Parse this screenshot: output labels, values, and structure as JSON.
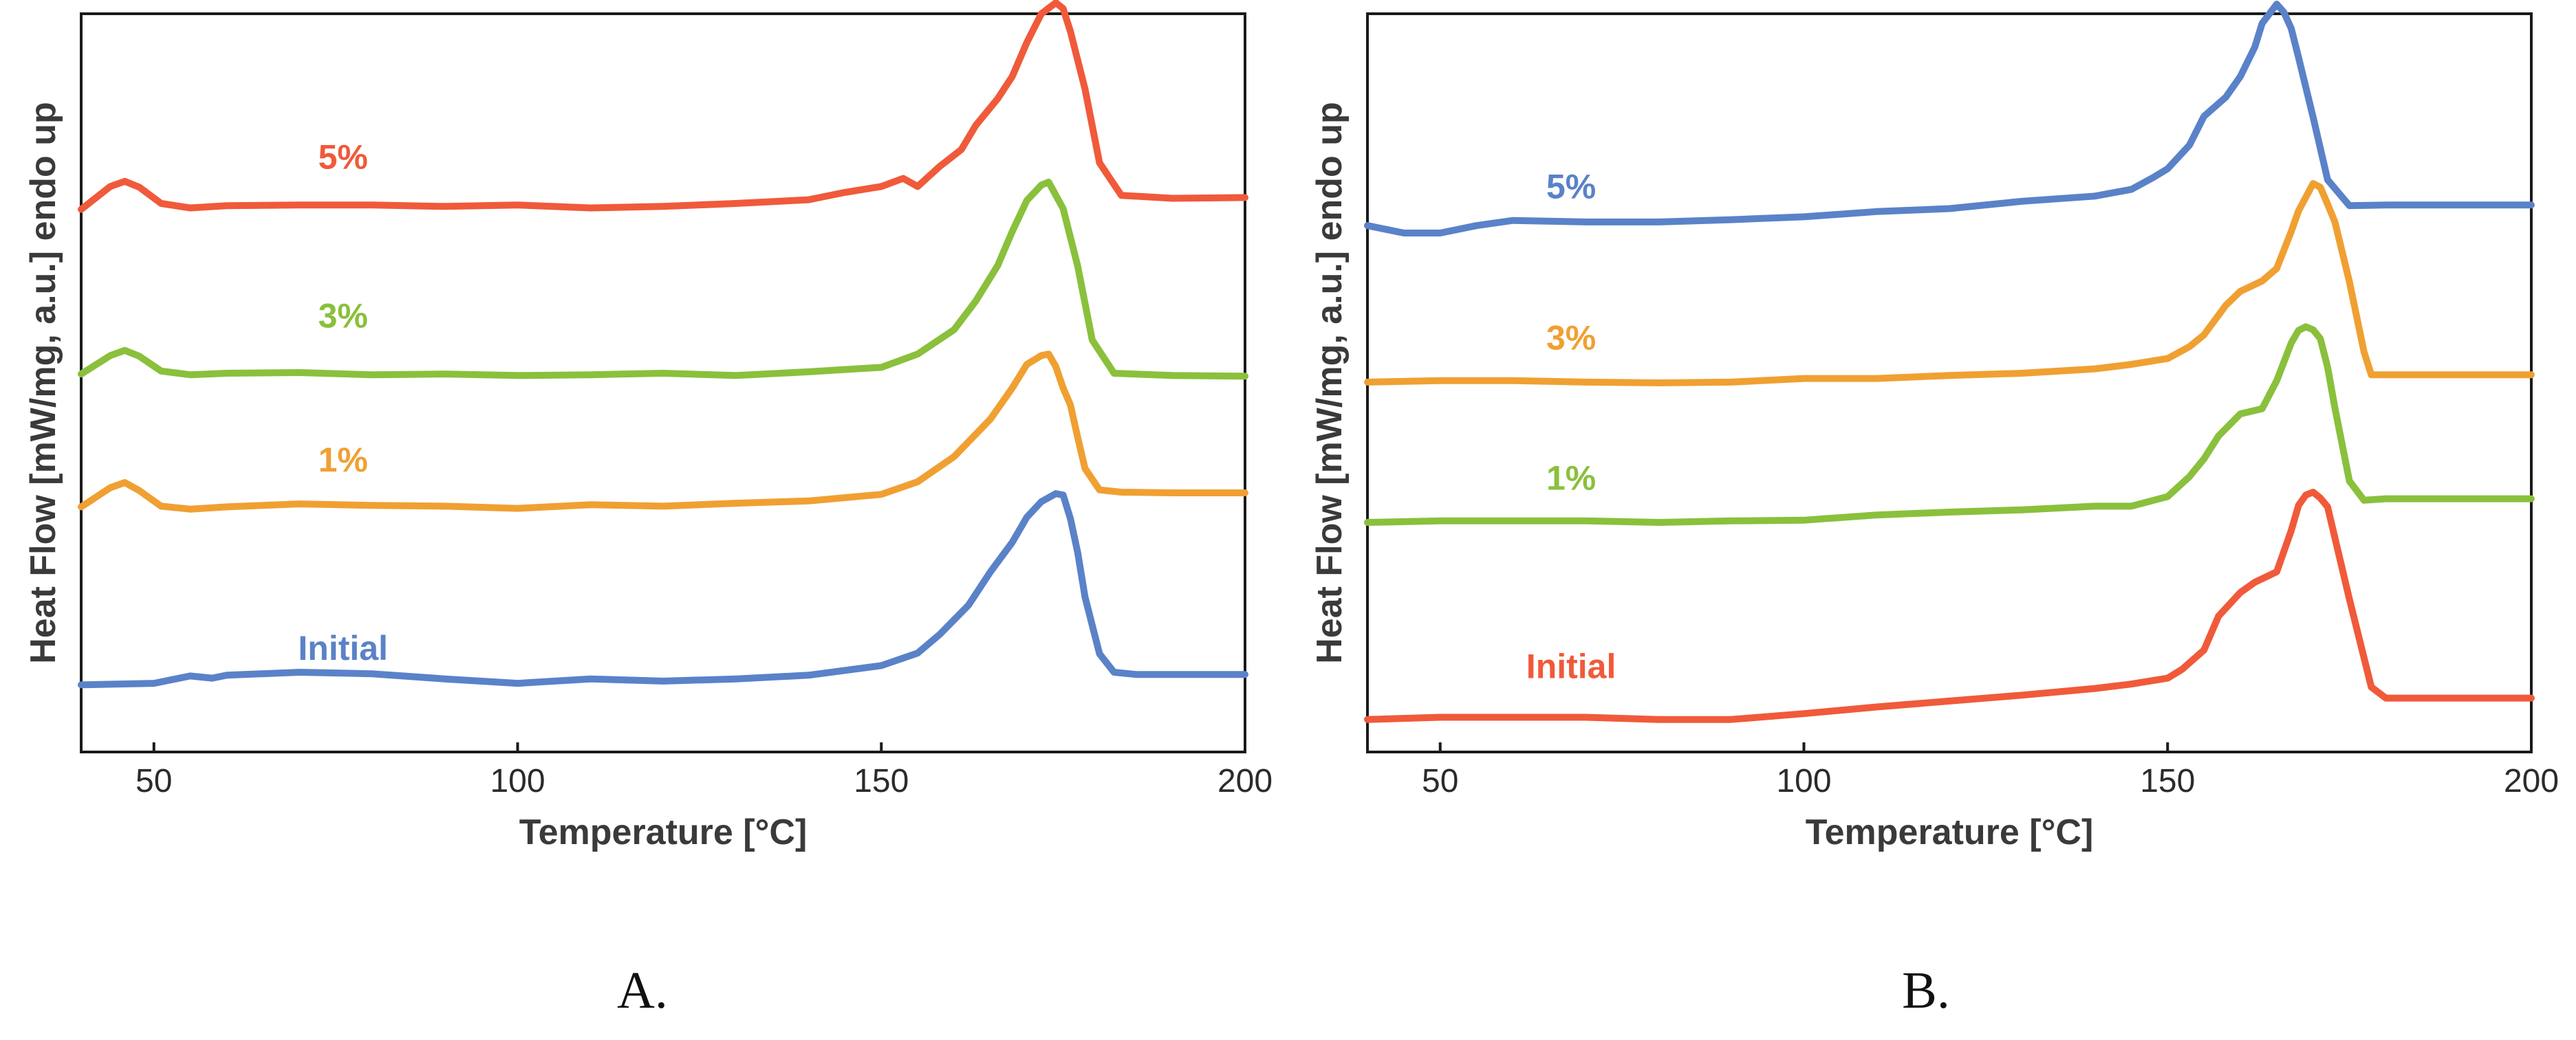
{
  "colors": {
    "red": "#f05a3a",
    "green": "#8ac03c",
    "orange": "#f0a032",
    "blue": "#5a82c8"
  },
  "chart_data": [
    {
      "type": "line",
      "caption": "A.",
      "xlabel": "Temperature [°C]",
      "ylabel": "Heat Flow [mW/mg, a.u.]  endo up",
      "xlim": [
        40,
        200
      ],
      "ylim": [
        0,
        100
      ],
      "xticks": [
        50,
        100,
        150,
        200
      ],
      "yticks_shown": false,
      "grid": false,
      "series": [
        {
          "name": "5%",
          "color": "#f05a3a",
          "label_at": [
            76,
            79
          ],
          "x": [
            40,
            44,
            46,
            48,
            51,
            55,
            60,
            70,
            80,
            90,
            100,
            110,
            120,
            130,
            140,
            145,
            150,
            153,
            155,
            158,
            161,
            163,
            166,
            168,
            170,
            172,
            174,
            175,
            176,
            178,
            180,
            183,
            190,
            200
          ],
          "y": [
            73.5,
            76.6,
            77.3,
            76.5,
            74.3,
            73.7,
            74.0,
            74.1,
            74.1,
            73.9,
            74.1,
            73.7,
            73.9,
            74.3,
            74.8,
            75.8,
            76.6,
            77.7,
            76.6,
            79.3,
            81.6,
            84.9,
            88.5,
            91.5,
            96.1,
            100.0,
            101.5,
            100.7,
            97.6,
            89.8,
            79.8,
            75.4,
            75.0,
            75.1
          ]
        },
        {
          "name": "3%",
          "color": "#8ac03c",
          "label_at": [
            76,
            57.5
          ],
          "x": [
            40,
            44,
            46,
            48,
            51,
            55,
            60,
            70,
            80,
            90,
            100,
            110,
            120,
            130,
            140,
            150,
            155,
            160,
            163,
            166,
            168,
            170,
            172,
            173,
            175,
            177,
            179,
            182,
            190,
            200
          ],
          "y": [
            51.2,
            53.7,
            54.4,
            53.6,
            51.6,
            51.1,
            51.3,
            51.4,
            51.1,
            51.2,
            51.0,
            51.1,
            51.3,
            51.0,
            51.5,
            52.1,
            53.9,
            57.2,
            61.1,
            65.9,
            70.5,
            74.7,
            76.8,
            77.2,
            73.6,
            65.8,
            55.8,
            51.3,
            51.0,
            50.9
          ]
        },
        {
          "name": "1%",
          "color": "#f0a032",
          "label_at": [
            76,
            38
          ],
          "x": [
            40,
            44,
            46,
            48,
            51,
            55,
            60,
            70,
            80,
            90,
            100,
            110,
            120,
            130,
            140,
            150,
            155,
            160,
            165,
            168,
            170,
            172,
            173,
            174,
            175,
            176,
            177,
            178,
            180,
            183,
            190,
            200
          ],
          "y": [
            33.2,
            35.8,
            36.5,
            35.4,
            33.3,
            32.9,
            33.2,
            33.6,
            33.4,
            33.3,
            33.0,
            33.5,
            33.3,
            33.7,
            34.0,
            34.9,
            36.6,
            40.0,
            45.1,
            49.3,
            52.5,
            53.7,
            53.9,
            52.2,
            49.3,
            47.0,
            42.6,
            38.4,
            35.5,
            35.2,
            35.1,
            35.1
          ]
        },
        {
          "name": "Initial",
          "color": "#5a82c8",
          "label_at": [
            76,
            12.5
          ],
          "x": [
            40,
            50,
            55,
            58,
            60,
            70,
            80,
            90,
            100,
            110,
            120,
            130,
            140,
            150,
            155,
            158,
            162,
            165,
            168,
            170,
            172,
            174,
            175,
            176,
            177,
            178,
            180,
            182,
            185,
            190,
            200
          ],
          "y": [
            9.1,
            9.3,
            10.3,
            10.0,
            10.4,
            10.8,
            10.6,
            9.9,
            9.3,
            9.9,
            9.6,
            9.9,
            10.4,
            11.7,
            13.4,
            15.9,
            19.9,
            24.4,
            28.4,
            31.8,
            33.9,
            35.0,
            34.8,
            31.6,
            27.0,
            21.0,
            13.3,
            10.8,
            10.5,
            10.5,
            10.5
          ]
        }
      ],
      "annotations": [
        "5%",
        "3%",
        "1%",
        "Initial"
      ]
    },
    {
      "type": "line",
      "caption": "B.",
      "xlabel": "Temperature [°C]",
      "ylabel": "Heat Flow [mW/mg, a.u.]  endo up",
      "xlim": [
        40,
        200
      ],
      "ylim": [
        0,
        100
      ],
      "xticks": [
        50,
        100,
        150,
        200
      ],
      "yticks_shown": false,
      "grid": false,
      "series": [
        {
          "name": "5%",
          "color": "#5a82c8",
          "label_at": [
            68,
            75
          ],
          "x": [
            40,
            45,
            50,
            55,
            60,
            70,
            80,
            90,
            100,
            110,
            120,
            130,
            140,
            145,
            148,
            150,
            153,
            155,
            158,
            160,
            162,
            163,
            165,
            166,
            167,
            168,
            170,
            172,
            175,
            180,
            190,
            200
          ],
          "y": [
            71.3,
            70.3,
            70.3,
            71.3,
            72.0,
            71.8,
            71.8,
            72.1,
            72.5,
            73.2,
            73.6,
            74.6,
            75.3,
            76.2,
            77.8,
            79.0,
            82.2,
            86.1,
            88.7,
            91.5,
            95.5,
            98.7,
            101.3,
            100.2,
            98.0,
            94.1,
            86.0,
            77.5,
            74.0,
            74.1,
            74.1,
            74.1
          ]
        },
        {
          "name": "3%",
          "color": "#f0a032",
          "label_at": [
            68,
            54.5
          ],
          "x": [
            40,
            50,
            60,
            70,
            80,
            90,
            100,
            110,
            120,
            130,
            140,
            145,
            150,
            153,
            155,
            158,
            160,
            163,
            165,
            167,
            168,
            170,
            171,
            172,
            173,
            175,
            177,
            178,
            180,
            190,
            200
          ],
          "y": [
            50.1,
            50.3,
            50.3,
            50.1,
            50.0,
            50.1,
            50.6,
            50.6,
            51.0,
            51.3,
            51.9,
            52.5,
            53.3,
            54.9,
            56.5,
            60.5,
            62.4,
            63.8,
            65.5,
            70.5,
            73.3,
            77.0,
            76.5,
            74.2,
            71.8,
            63.7,
            54.2,
            51.1,
            51.1,
            51.1,
            51.1
          ]
        },
        {
          "name": "1%",
          "color": "#8ac03c",
          "label_at": [
            68,
            35.5
          ],
          "x": [
            40,
            50,
            60,
            70,
            80,
            90,
            100,
            110,
            120,
            130,
            140,
            145,
            150,
            153,
            155,
            157,
            160,
            163,
            165,
            167,
            168,
            169,
            170,
            171,
            172,
            173,
            175,
            177,
            180,
            190,
            200
          ],
          "y": [
            31.1,
            31.3,
            31.3,
            31.3,
            31.1,
            31.3,
            31.4,
            32.1,
            32.5,
            32.8,
            33.3,
            33.3,
            34.6,
            37.3,
            39.7,
            42.8,
            45.8,
            46.5,
            50.3,
            55.4,
            57.1,
            57.6,
            57.2,
            56.0,
            52.1,
            46.6,
            36.7,
            34.1,
            34.3,
            34.3,
            34.3
          ]
        },
        {
          "name": "Initial",
          "color": "#f05a3a",
          "label_at": [
            68,
            10
          ],
          "x": [
            40,
            50,
            60,
            70,
            80,
            90,
            100,
            110,
            120,
            130,
            140,
            145,
            150,
            152,
            155,
            157,
            160,
            162,
            165,
            167,
            168,
            169,
            170,
            171,
            172,
            173,
            175,
            178,
            180,
            190,
            200
          ],
          "y": [
            4.4,
            4.7,
            4.7,
            4.7,
            4.4,
            4.4,
            5.2,
            6.1,
            6.9,
            7.7,
            8.6,
            9.2,
            10.0,
            11.2,
            13.8,
            18.4,
            21.6,
            23.0,
            24.4,
            30.0,
            33.4,
            34.8,
            35.2,
            34.4,
            33.2,
            29.0,
            20.7,
            8.8,
            7.3,
            7.3,
            7.3
          ]
        }
      ],
      "annotations": [
        "5%",
        "3%",
        "1%",
        "Initial"
      ]
    }
  ]
}
